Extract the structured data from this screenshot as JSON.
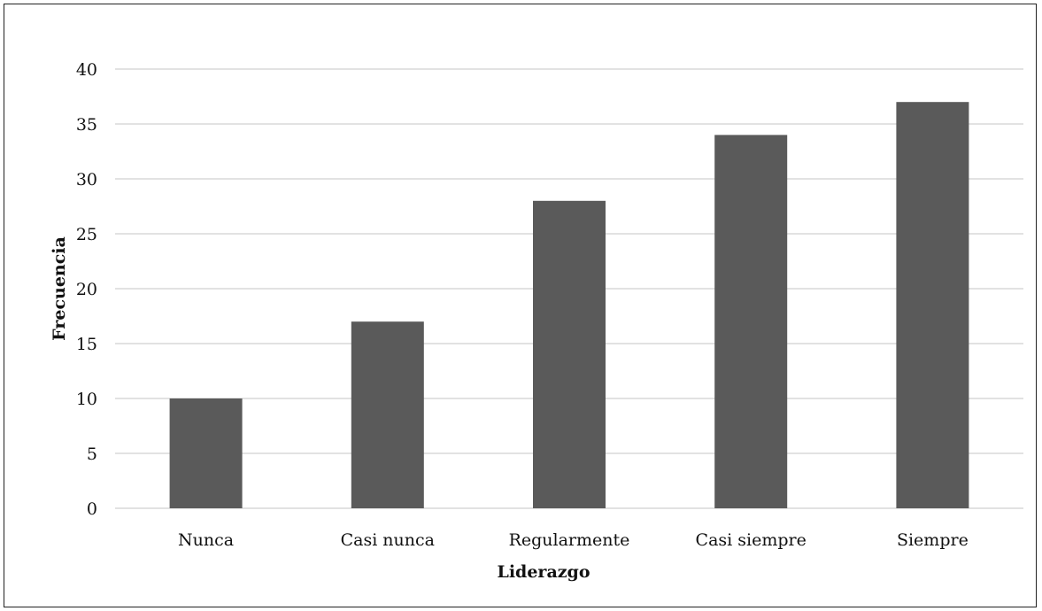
{
  "chart_data": {
    "type": "bar",
    "categories": [
      "Nunca",
      "Casi nunca",
      "Regularmente",
      "Casi siempre",
      "Siempre"
    ],
    "values": [
      10,
      17,
      28,
      34,
      37
    ],
    "title": "",
    "xlabel": "Liderazgo",
    "ylabel": "Frecuencia",
    "ylim": [
      0,
      40
    ],
    "yticks": [
      0,
      5,
      10,
      15,
      20,
      25,
      30,
      35,
      40
    ],
    "grid": true,
    "legend": "none",
    "bar_color": "#5a5a5a",
    "grid_color": "#d9d9d9"
  }
}
